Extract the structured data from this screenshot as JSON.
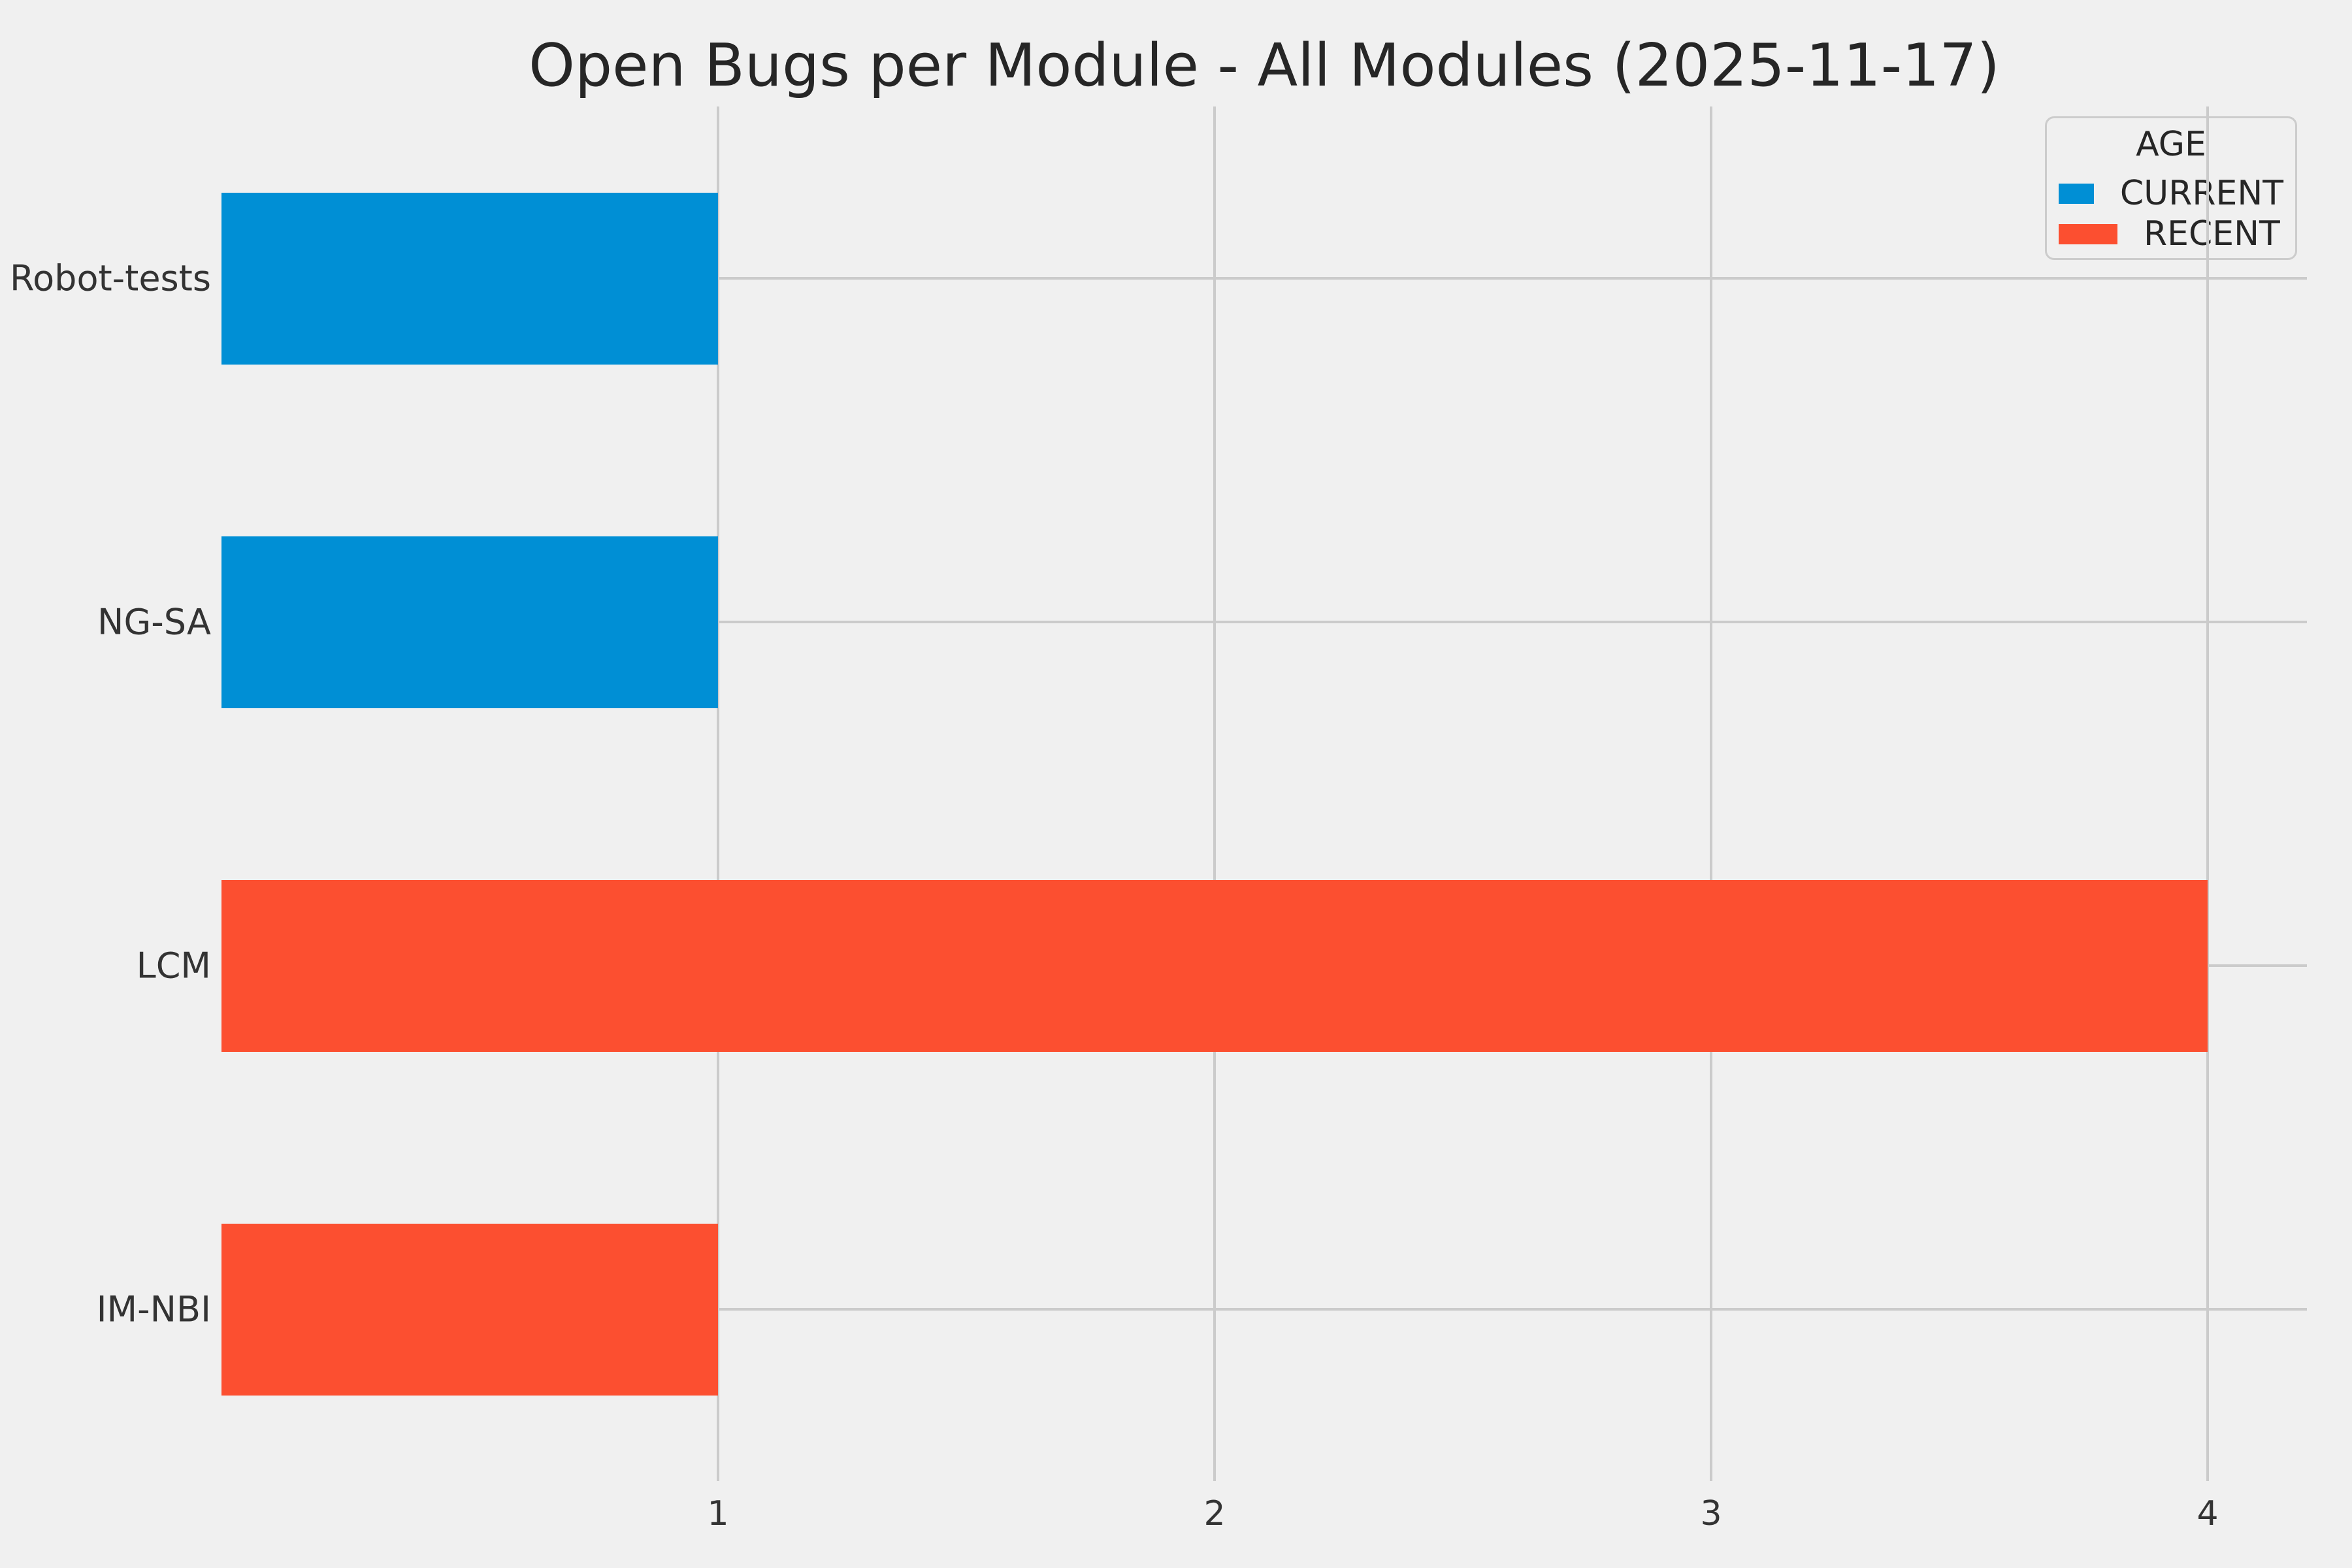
{
  "chart_data": {
    "type": "bar",
    "orientation": "horizontal",
    "title": "Open Bugs per Module - All Modules (2025-11-17)",
    "categories": [
      "Robot-tests",
      "NG-SA",
      "LCM",
      "IM-NBI"
    ],
    "rows": [
      {
        "category": "Robot-tests",
        "value": 1,
        "series": "CURRENT"
      },
      {
        "category": "NG-SA",
        "value": 1,
        "series": "CURRENT"
      },
      {
        "category": "LCM",
        "value": 4,
        "series": "RECENT"
      },
      {
        "category": "IM-NBI",
        "value": 1,
        "series": "RECENT"
      }
    ],
    "series": [
      {
        "name": "CURRENT",
        "color": "#008fd5"
      },
      {
        "name": "RECENT",
        "color": "#fc4f30"
      }
    ],
    "legend": {
      "title": "AGE",
      "position": "upper-right"
    },
    "x_axis": {
      "ticks": [
        1,
        2,
        3,
        4
      ],
      "lim": [
        0,
        4.2
      ]
    },
    "grid": true,
    "style": {
      "background": "#f0f0f0",
      "gridline": "#cbcbcb",
      "tick_text": "#333333",
      "title_color": "#262626"
    }
  }
}
